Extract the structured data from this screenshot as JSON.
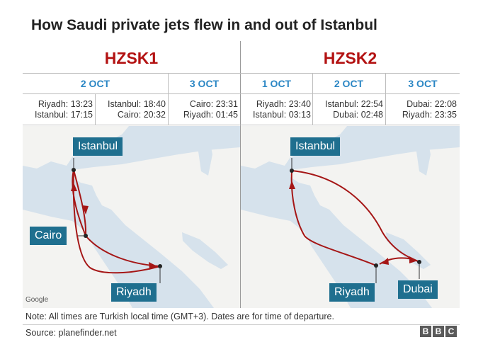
{
  "title": "How Saudi private jets flew in and out of Istanbul",
  "jets": [
    {
      "name": "HZSK1",
      "dates": [
        "2 OCT",
        "3 OCT"
      ],
      "times": [
        {
          "line1": "Riyadh: 13:23",
          "line2": "Istanbul: 17:15"
        },
        {
          "line1": "Istanbul: 18:40",
          "line2": "Cairo: 20:32"
        },
        {
          "line1": "Cairo: 23:31",
          "line2": "Riyadh: 01:45"
        }
      ],
      "cities": [
        "Istanbul",
        "Cairo",
        "Riyadh"
      ]
    },
    {
      "name": "HZSK2",
      "dates": [
        "1 OCT",
        "2 OCT",
        "3 OCT"
      ],
      "times": [
        {
          "line1": "Riyadh: 23:40",
          "line2": "Istanbul: 03:13"
        },
        {
          "line1": "Istanbul: 22:54",
          "line2": "Dubai: 02:48"
        },
        {
          "line1": "Dubai: 22:08",
          "line2": "Riyadh: 23:35"
        }
      ],
      "cities": [
        "Istanbul",
        "Riyadh",
        "Dubai"
      ]
    }
  ],
  "map_credit": "Google",
  "note": "Note: All times are Turkish local time (GMT+3). Dates are for time of departure.",
  "source": "Source: planefinder.net",
  "logo": [
    "B",
    "B",
    "C"
  ],
  "colors": {
    "jet_title": "#b31212",
    "date": "#2a86c4",
    "route": "#a51616",
    "label_bg": "#1f6f8f",
    "sea": "#d6e2ec",
    "land": "#f3f3f1"
  }
}
